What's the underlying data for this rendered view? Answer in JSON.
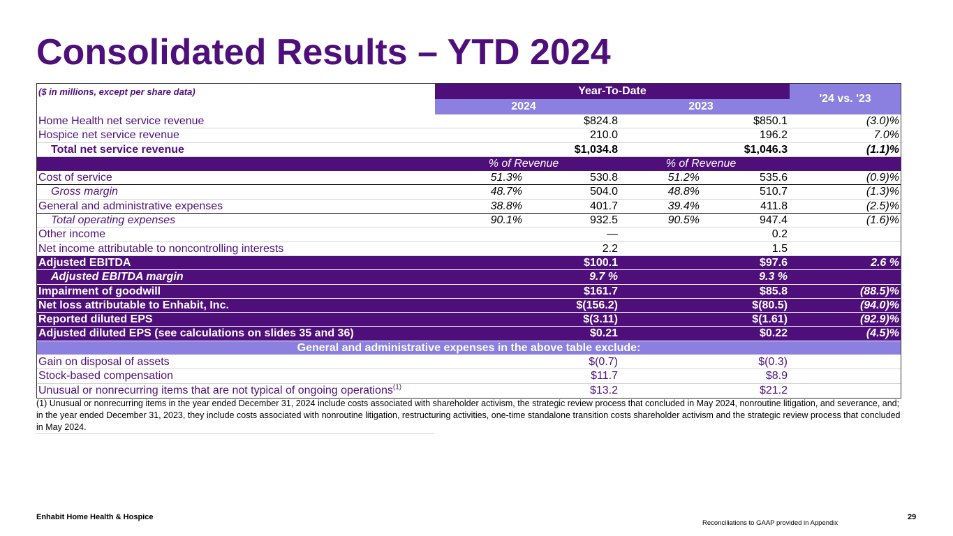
{
  "title": "Consolidated Results – YTD 2024",
  "table": {
    "note": "($ in millions, except per share data)",
    "group_header": "Year-To-Date",
    "col_2024": "2024",
    "col_2023": "2023",
    "col_change": "'24 vs. '23",
    "pct_label_2024": "% of Revenue",
    "pct_label_2023": "% of Revenue",
    "rows": [
      {
        "label": "Home Health net service revenue",
        "pct24": "",
        "v24": "$824.8",
        "pct23": "",
        "v23": "$850.1",
        "chg": "(3.0)%"
      },
      {
        "label": "Hospice net service revenue",
        "pct24": "",
        "v24": "210.0",
        "pct23": "",
        "v23": "196.2",
        "chg": "7.0%"
      },
      {
        "label": "Total net service revenue",
        "pct24": "",
        "v24": "$1,034.8",
        "pct23": "",
        "v23": "$1,046.3",
        "chg": "(1.1)%"
      },
      {
        "label": "Cost of service",
        "pct24": "51.3%",
        "v24": "530.8",
        "pct23": "51.2%",
        "v23": "535.6",
        "chg": "(0.9)%"
      },
      {
        "label": "Gross margin",
        "pct24": "48.7%",
        "v24": "504.0",
        "pct23": "48.8%",
        "v23": "510.7",
        "chg": "(1.3)%"
      },
      {
        "label": "General and administrative expenses",
        "pct24": "38.8%",
        "v24": "401.7",
        "pct23": "39.4%",
        "v23": "411.8",
        "chg": "(2.5)%"
      },
      {
        "label": "Total operating expenses",
        "pct24": "90.1%",
        "v24": "932.5",
        "pct23": "90.5%",
        "v23": "947.4",
        "chg": "(1.6)%"
      },
      {
        "label": "Other income",
        "pct24": "",
        "v24": "—",
        "pct23": "",
        "v23": "0.2",
        "chg": ""
      },
      {
        "label": "Net income attributable to noncontrolling interests",
        "pct24": "",
        "v24": "2.2",
        "pct23": "",
        "v23": "1.5",
        "chg": ""
      },
      {
        "label": "Adjusted EBITDA",
        "pct24": "",
        "v24": "$100.1",
        "pct23": "",
        "v23": "$97.6",
        "chg": "2.6 %"
      },
      {
        "label": "Adjusted EBITDA margin",
        "pct24": "",
        "v24": "9.7 %",
        "pct23": "",
        "v23": "9.3 %",
        "chg": ""
      },
      {
        "label": "Impairment of goodwill",
        "pct24": "",
        "v24": "$161.7",
        "pct23": "",
        "v23": "$85.8",
        "chg": "(88.5)%"
      },
      {
        "label": "Net loss attributable to Enhabit, Inc.",
        "pct24": "",
        "v24": "$(156.2)",
        "pct23": "",
        "v23": "$(80.5)",
        "chg": "(94.0)%"
      },
      {
        "label": "Reported diluted EPS",
        "pct24": "",
        "v24": "$(3.11)",
        "pct23": "",
        "v23": "$(1.61)",
        "chg": "(92.9)%"
      },
      {
        "label": "Adjusted diluted EPS (see calculations on slides 35 and 36)",
        "pct24": "",
        "v24": "$0.21",
        "pct23": "",
        "v23": "$0.22",
        "chg": "(4.5)%"
      }
    ],
    "exclude_header": "General and administrative expenses in the above table exclude:",
    "exclude_rows": [
      {
        "label": "Gain on disposal of assets",
        "v24": "$(0.7)",
        "v23": "$(0.3)"
      },
      {
        "label": "Stock-based compensation",
        "v24": "$11.7",
        "v23": "$8.9"
      },
      {
        "label": "Unusual or nonrecurring items that are not typical of ongoing operations",
        "sup": "(1)",
        "v24": "$13.2",
        "v23": "$21.2"
      }
    ]
  },
  "footnote": "(1) Unusual or nonrecurring items in the year ended December 31, 2024 include costs associated with shareholder activism, the strategic review process that concluded in May 2024, nonroutine litigation, and severance, and; in the year ended December 31, 2023, they include costs associated with nonroutine litigation, restructuring activities, one-time standalone transition costs shareholder activism and the strategic review process that concluded in May 2024.",
  "footer": {
    "brand": "Enhabit Home Health & Hospice",
    "page": "29",
    "reconciliation": "Reconciliations to GAAP provided in Appendix"
  }
}
